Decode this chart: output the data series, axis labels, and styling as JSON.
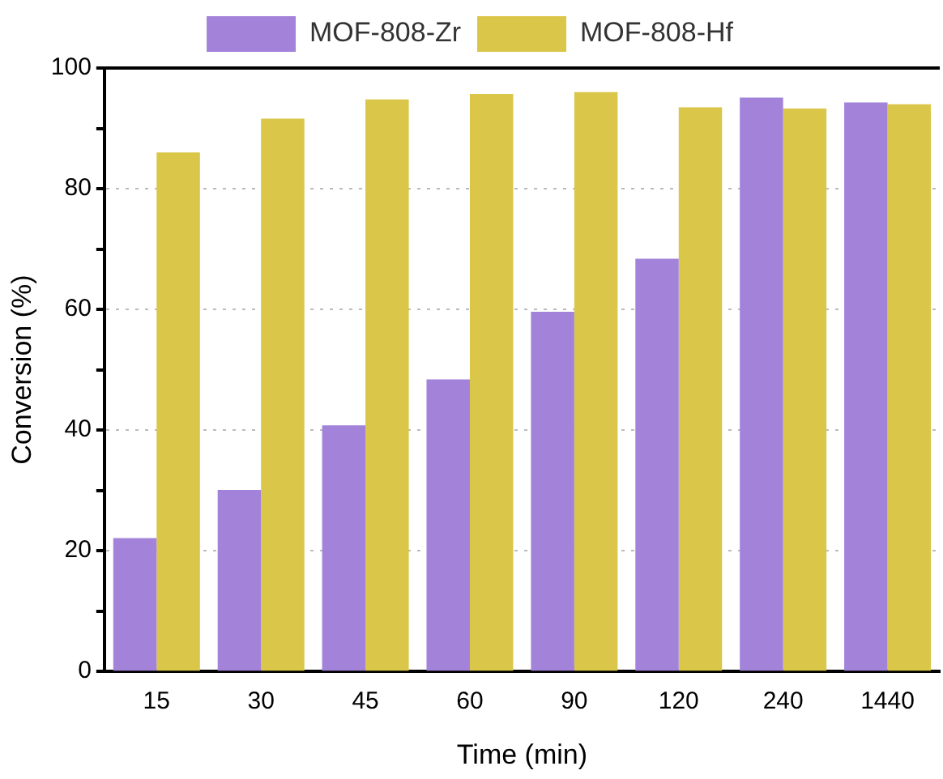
{
  "chart_data": {
    "type": "bar",
    "xlabel": "Time (min)",
    "ylabel": "Conversion (%)",
    "categories": [
      "15",
      "30",
      "45",
      "60",
      "90",
      "120",
      "240",
      "1440"
    ],
    "series": [
      {
        "name": "MOF-808-Zr",
        "color": "#a283d9",
        "values": [
          22.1,
          30.1,
          40.8,
          48.4,
          59.6,
          68.4,
          95.1,
          94.3
        ]
      },
      {
        "name": "MOF-808-Hf",
        "color": "#dac648",
        "values": [
          86.0,
          91.6,
          94.8,
          95.7,
          96.0,
          93.5,
          93.3,
          94.0
        ]
      }
    ],
    "ylim": [
      0,
      100
    ],
    "yticks": [
      0,
      {
        "value": 10,
        "label": null
      },
      20,
      {
        "value": 30,
        "label": null
      },
      40,
      {
        "value": 50,
        "label": null
      },
      60,
      {
        "value": 70,
        "label": null
      },
      80,
      {
        "value": 90,
        "label": null
      },
      100
    ],
    "grid": "y",
    "legend": "top"
  }
}
